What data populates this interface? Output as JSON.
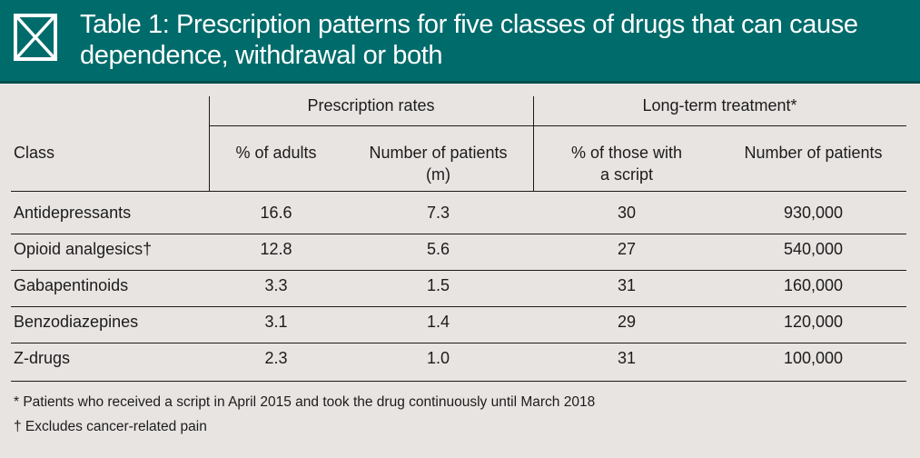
{
  "title": "Table 1: Prescription patterns for five classes of drugs that can cause dependence, withdrawal or both",
  "icon": "table-icon",
  "colors": {
    "header_bg": "#006b6b",
    "header_text": "#ffffff",
    "page_bg": "#e8e4e2"
  },
  "groups": {
    "prescription_rates": "Prescription rates",
    "long_term_treatment": "Long-term treatment*"
  },
  "columns": {
    "class": "Class",
    "pct_adults": "% of adults",
    "num_patients_m_line1": "Number of patients",
    "num_patients_m_line2": "(m)",
    "pct_script_line1": "% of those with",
    "pct_script_line2": "a script",
    "num_patients": "Number of patients"
  },
  "rows": [
    {
      "class": "Antidepressants",
      "pct_adults": "16.6",
      "num_patients_m": "7.3",
      "pct_script": "30",
      "num_patients": "930,000"
    },
    {
      "class": "Opioid analgesics†",
      "pct_adults": "12.8",
      "num_patients_m": "5.6",
      "pct_script": "27",
      "num_patients": "540,000"
    },
    {
      "class": "Gabapentinoids",
      "pct_adults": "3.3",
      "num_patients_m": "1.5",
      "pct_script": "31",
      "num_patients": "160,000"
    },
    {
      "class": "Benzodiazepines",
      "pct_adults": "3.1",
      "num_patients_m": "1.4",
      "pct_script": "29",
      "num_patients": "120,000"
    },
    {
      "class": "Z-drugs",
      "pct_adults": "2.3",
      "num_patients_m": "1.0",
      "pct_script": "31",
      "num_patients": "100,000"
    }
  ],
  "footnotes": [
    "* Patients who received a script in April 2015 and took the drug continuously until March 2018",
    "† Excludes cancer-related pain"
  ]
}
